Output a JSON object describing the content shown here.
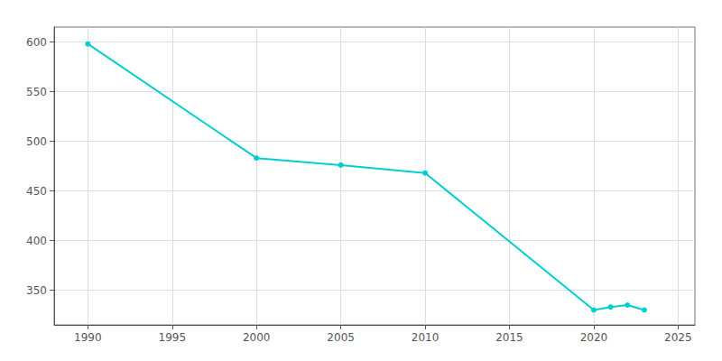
{
  "chart_data": {
    "type": "line",
    "x": [
      1990,
      2000,
      2005,
      2010,
      2020,
      2021,
      2022,
      2023
    ],
    "values": [
      598,
      483,
      476,
      468,
      330,
      333,
      335,
      330
    ],
    "color": "#00CED1",
    "marker": "circle",
    "xlim": [
      1988,
      2026
    ],
    "xticks": [
      1990,
      1995,
      2000,
      2005,
      2010,
      2015,
      2020,
      2025
    ],
    "ylim": [
      315,
      615
    ],
    "yticks": [
      350,
      400,
      450,
      500,
      550,
      600
    ],
    "grid": true
  }
}
